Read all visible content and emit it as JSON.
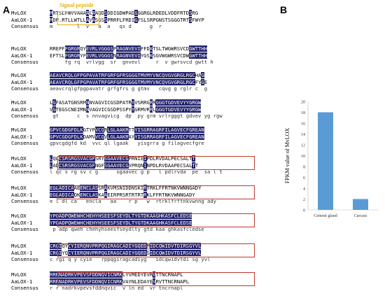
{
  "panel_a_label": "A",
  "panel_b_label": "B",
  "annotations": {
    "signal_peptide": "Signal peptide",
    "lysyl_oxidase_domain": "Lysyl oxidase domain"
  },
  "row_labels": {
    "mv": "MvLOX",
    "aa": "AaLOX-1",
    "cons": "Consensus"
  },
  "blocks": [
    {
      "mv": "MRTSLFWVVAAAALAAQDSDDIGDWPADGGGRGLRDEDLVDDFRTDSRG",
      "aa": "MDP.RTLLWTLLAVASGSSPRRFLFRDIGFSLSRPGNSTSGGGTRTSFWYP",
      "cons": "m        l  v   a  a   qs d      g  r"
    },
    {
      "mv": "RREPFFGRGRQYEVRLVGGGSPRAGNVEVIFFDKTSLTWGWRSVCDGWTTHH",
      "aa": "EFTSLFGRGRYFEVRLVGGGSNRAGNVEVIYGSKSGVWGWRSVCDWGWTTHH",
      "cons": "     fg rq  vrlvgg  sr  gnvevl     r  v gwrsvcd gwtt h"
    },
    {
      "mv": "AEAVCRQLGFPGPAVATRFGRFGFRSGGGTMVMYVNCQVGVGRGLRGCHAG",
      "aa": "AEAVCRQLGFPGPAVATRFGRFGFRSGGGTMVMYVNCQVGVGRGLRGCFYGE",
      "cons": "aeavcrqlgfpgpavatr grfgfrs g gtmv   cqvg g rglr c  g"
    },
    {
      "mv": "LGFASATGNSRMNNVAGVICGSDPATRYVSRRGRRGGGTGDVEVYYGRGW",
      "aa": "VGTEGSCNEIMNNVAGVICGSDPSSPYYGRMVRRLGGGTGDVEVYYGRGW",
      "cons": " gt      c  s nnvagvicg  dp  py grm vrlrgggt gdvev yg rgw"
    },
    {
      "mv": "GPVCGDGFDLKGTYPVCQRLGLAAKRTTYISGRRAGRFILAGVECFGREAN",
      "aa": "GPVCGDGFDLKDAMVVCQVLGLAAKRAYYISGRRAGRFILAGVECFGREAN",
      "cons": "gpvcgdgfd kd  vvc ql lgaak   yisgrra g filagvecfgre"
    },
    {
      "mv": "LQLCSRSRGSVACGFSRYSGAAVECGPRNIEIPDLRVDALPECSALTT",
      "aa": "LADCSRSRGSVACGFNGFSGAAVECGVPRQNINPDLRVDAAPECSALTT",
      "cons": "l qc s rg sv c g      sgaavec g p   l pdlrvda  pe  sa l t"
    },
    {
      "mv": "EGLADICAAEENCLASSRAKVMSNIDDNSKIRTRKLFFRTNKVWNNGADY",
      "aa": "EGLADICAQKENCLASKAAEIRPRSRTRTRTRKLFFRTNKVWNNGADY",
      "cons": "e l dl ca   encla   aa    r p   w  rtrklfrftnkvwnng ady"
    },
    {
      "mv": "YPQADPQWEWHCHEHYHSEESFSEYDLTYGTDKAAGHKASFCLEDSE",
      "aa": "YPQADPQWEWHCHEHYHSEESFSEYDLTYGTDKAAGHKASFCLEDSE",
      "cons": " p adp qweh chehyhseesfseydlty gtd kaa ghkasfcledse"
    },
    {
      "mv": "CRGIQYCYIERQNVPRPQGIRAGCADIYGQEDMIDCQWIDVTDIRSGYVL",
      "aa": "CRGIYQCYIERQNVPRPQGIRAGCADIYGQEDSIDCQWIDVTDIRSGYVL",
      "cons": "c rgi q y cyie   rppqgiragcadiyg   idcqwidvtdi sg yvl"
    },
    {
      "mv": "RRRNADRKVPEVSFDDNQVICNRKLYVMEDYEVRVTTNCRNAPL",
      "aa": "RRRNADRKVPEVSFDDNQVICNRKVAYNLEDAYEVRVTTNCRNAPL",
      "cons": "r r nadrkvpevsfddnqvic  v ln ed  vr tncrnapl"
    }
  ],
  "chart_data": {
    "type": "bar",
    "categories": [
      "Cement gland",
      "Carcass"
    ],
    "values": [
      18,
      2
    ],
    "ylabel": "FPKM value of MvLOX",
    "ylim": [
      0,
      20
    ],
    "yticks": [
      0,
      2,
      4,
      6,
      8,
      10,
      12,
      14,
      16,
      18,
      20
    ],
    "bar_color": "#5b9bd5",
    "grid": false
  },
  "colors": {
    "highlight": "#1f1f6b",
    "box": "#c0392b",
    "signal": "#e8b100",
    "lysyl_label": "#c0392b"
  }
}
